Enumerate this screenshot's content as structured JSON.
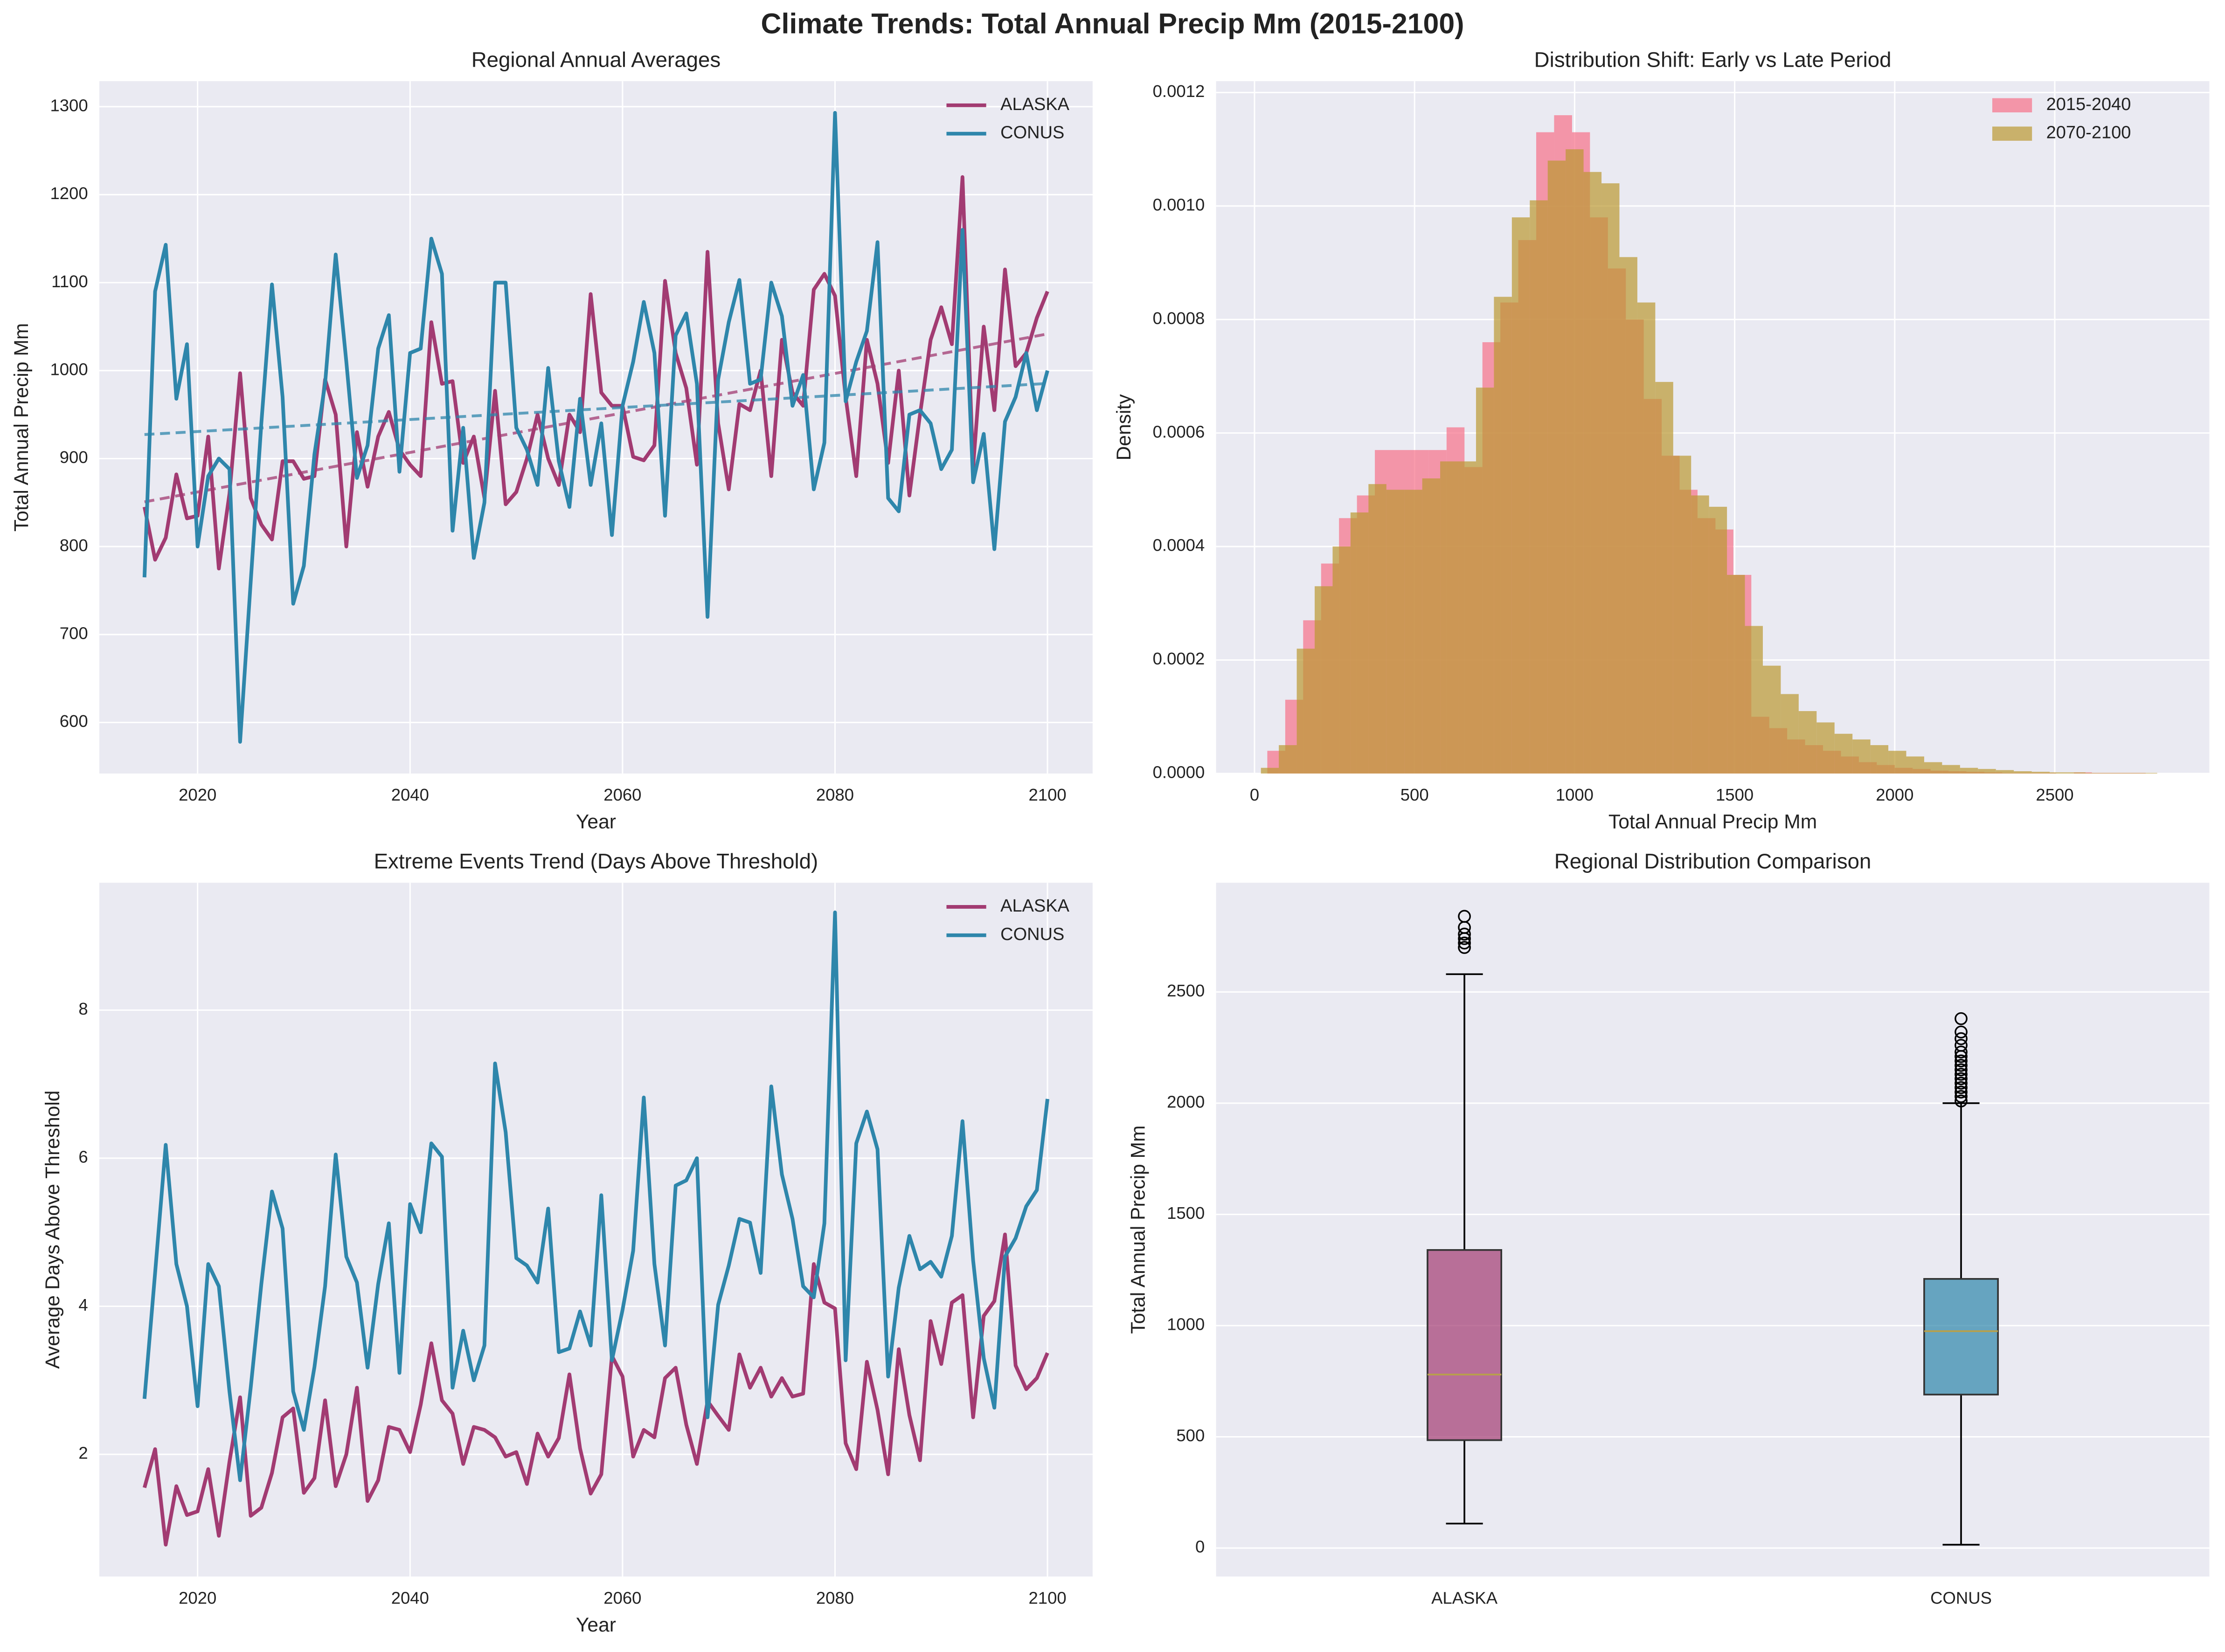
{
  "title": "Climate Trends: Total Annual Precip Mm (2015-2100)",
  "chart_data": [
    {
      "type": "line",
      "title": "Regional Annual Averages",
      "xlabel": "Year",
      "ylabel": "Total Annual Precip Mm",
      "x": [
        2015,
        2016,
        2017,
        2018,
        2019,
        2020,
        2021,
        2022,
        2023,
        2024,
        2025,
        2026,
        2027,
        2028,
        2029,
        2030,
        2031,
        2032,
        2033,
        2034,
        2035,
        2036,
        2037,
        2038,
        2039,
        2040,
        2041,
        2042,
        2043,
        2044,
        2045,
        2046,
        2047,
        2048,
        2049,
        2050,
        2051,
        2052,
        2053,
        2054,
        2055,
        2056,
        2057,
        2058,
        2059,
        2060,
        2061,
        2062,
        2063,
        2064,
        2065,
        2066,
        2067,
        2068,
        2069,
        2070,
        2071,
        2072,
        2073,
        2074,
        2075,
        2076,
        2077,
        2078,
        2079,
        2080,
        2081,
        2082,
        2083,
        2084,
        2085,
        2086,
        2087,
        2088,
        2089,
        2090,
        2091,
        2092,
        2093,
        2094,
        2095,
        2096,
        2097,
        2098,
        2099,
        2100
      ],
      "series": [
        {
          "name": "ALASKA",
          "color": "#a23b72",
          "values": [
            845,
            785,
            810,
            882,
            832,
            835,
            925,
            775,
            860,
            997,
            855,
            825,
            808,
            897,
            897,
            877,
            880,
            990,
            950,
            800,
            930,
            868,
            925,
            953,
            910,
            893,
            880,
            1055,
            985,
            988,
            895,
            925,
            855,
            977,
            848,
            862,
            900,
            950,
            900,
            870,
            950,
            930,
            1087,
            975,
            960,
            960,
            902,
            898,
            915,
            1102,
            1020,
            980,
            893,
            1135,
            940,
            865,
            962,
            955,
            1000,
            880,
            1035,
            975,
            960,
            1092,
            1110,
            1085,
            970,
            880,
            1035,
            985,
            895,
            1000,
            858,
            950,
            1035,
            1072,
            1030,
            1220,
            890,
            1050,
            955,
            1115,
            1005,
            1020,
            1060,
            1090
          ]
        },
        {
          "name": "CONUS",
          "color": "#2e86ab",
          "values": [
            765,
            1090,
            1143,
            968,
            1030,
            800,
            880,
            900,
            888,
            578,
            760,
            940,
            1098,
            970,
            735,
            778,
            905,
            985,
            1132,
            1010,
            878,
            915,
            1025,
            1063,
            885,
            1020,
            1025,
            1150,
            1110,
            818,
            935,
            787,
            850,
            1100,
            1100,
            935,
            910,
            870,
            1003,
            897,
            845,
            968,
            870,
            940,
            813,
            960,
            1010,
            1078,
            1020,
            835,
            1040,
            1065,
            985,
            720,
            990,
            1055,
            1103,
            985,
            990,
            1100,
            1062,
            960,
            995,
            865,
            918,
            1293,
            965,
            1010,
            1045,
            1146,
            855,
            840,
            950,
            955,
            940,
            888,
            910,
            1160,
            873,
            928,
            797,
            942,
            970,
            1020,
            955,
            1000
          ]
        }
      ],
      "xlim": [
        2010.75,
        2104.25
      ],
      "xticks": [
        2020,
        2040,
        2060,
        2080,
        2100
      ],
      "ylim": [
        542,
        1329
      ],
      "yticks": [
        600,
        700,
        800,
        900,
        1000,
        1100,
        1200,
        1300
      ],
      "grid": true,
      "trendline": true,
      "legend": "upper right"
    },
    {
      "type": "histogram",
      "title": "Distribution Shift: Early vs Late Period",
      "xlabel": "Total Annual Precip Mm",
      "ylabel": "Density",
      "series": [
        {
          "name": "2015-2040",
          "color": "#f77189",
          "bins": [
            40,
            96,
            152,
            208,
            264,
            320,
            376,
            432,
            488,
            544,
            600,
            656,
            712,
            768,
            824,
            880,
            936,
            992,
            1048,
            1104,
            1160,
            1216,
            1272,
            1328,
            1384,
            1440,
            1496,
            1552,
            1608,
            1664,
            1720,
            1776,
            1832,
            1888,
            1944,
            2000,
            2056,
            2112,
            2168,
            2224,
            2280,
            2336,
            2392,
            2448,
            2504,
            2560,
            2616,
            2672,
            2728,
            2784,
            2840
          ],
          "values": [
            4e-05,
            0.00013,
            0.00027,
            0.00037,
            0.00045,
            0.00049,
            0.00057,
            0.00057,
            0.00057,
            0.00057,
            0.00061,
            0.00054,
            0.00076,
            0.00083,
            0.00094,
            0.00113,
            0.00116,
            0.00113,
            0.00098,
            0.00089,
            0.0008,
            0.00066,
            0.00056,
            0.0005,
            0.00045,
            0.00043,
            0.00035,
            0.0001,
            8e-05,
            6e-05,
            5e-05,
            4e-05,
            3e-05,
            2e-05,
            1.5e-05,
            1e-05,
            8e-06,
            5e-06,
            4e-06,
            3e-06,
            2e-06,
            1e-06,
            1e-06,
            1e-06,
            0,
            2e-06,
            1e-06,
            1e-06,
            1e-06,
            0
          ]
        },
        {
          "name": "2070-2100",
          "color": "#bb9832",
          "bins": [
            20,
            76,
            132,
            188,
            244,
            300,
            356,
            412,
            468,
            524,
            580,
            636,
            692,
            748,
            804,
            860,
            916,
            972,
            1028,
            1084,
            1140,
            1196,
            1252,
            1308,
            1364,
            1420,
            1476,
            1532,
            1588,
            1644,
            1700,
            1756,
            1812,
            1868,
            1924,
            1980,
            2036,
            2092,
            2148,
            2204,
            2260,
            2316,
            2372,
            2428,
            2484,
            2540,
            2596,
            2652,
            2708,
            2764,
            2820
          ],
          "values": [
            1e-05,
            5e-05,
            0.00022,
            0.00033,
            0.0004,
            0.00046,
            0.00051,
            0.0005,
            0.0005,
            0.00052,
            0.00055,
            0.00055,
            0.00068,
            0.00084,
            0.00098,
            0.00101,
            0.00108,
            0.0011,
            0.00106,
            0.00104,
            0.00091,
            0.00083,
            0.00069,
            0.00056,
            0.00049,
            0.00047,
            0.00035,
            0.00026,
            0.00019,
            0.00014,
            0.00011,
            9e-05,
            7e-05,
            6e-05,
            5e-05,
            4e-05,
            3e-05,
            2e-05,
            1.5e-05,
            1e-05,
            8e-06,
            6e-06,
            4e-06,
            3e-06,
            2e-06,
            2e-06,
            1e-06,
            1e-06,
            1e-06,
            1e-06
          ]
        }
      ],
      "xlim": [
        -120,
        2983
      ],
      "xticks": [
        0,
        500,
        1000,
        1500,
        2000,
        2500
      ],
      "ylim": [
        0,
        0.00122
      ],
      "yticks": [
        {
          "value": 0,
          "label": "0.0000"
        },
        {
          "value": 0.0002,
          "label": "0.0002"
        },
        {
          "value": 0.0004,
          "label": "0.0004"
        },
        {
          "value": 0.0006,
          "label": "0.0006"
        },
        {
          "value": 0.0008,
          "label": "0.0008"
        },
        {
          "value": 0.001,
          "label": "0.0010"
        },
        {
          "value": 0.0012,
          "label": "0.0012"
        }
      ],
      "grid": true,
      "legend": "upper right"
    },
    {
      "type": "line",
      "title": "Extreme Events Trend (Days Above Threshold)",
      "xlabel": "Year",
      "ylabel": "Average Days Above Threshold",
      "x": [
        2015,
        2016,
        2017,
        2018,
        2019,
        2020,
        2021,
        2022,
        2023,
        2024,
        2025,
        2026,
        2027,
        2028,
        2029,
        2030,
        2031,
        2032,
        2033,
        2034,
        2035,
        2036,
        2037,
        2038,
        2039,
        2040,
        2041,
        2042,
        2043,
        2044,
        2045,
        2046,
        2047,
        2048,
        2049,
        2050,
        2051,
        2052,
        2053,
        2054,
        2055,
        2056,
        2057,
        2058,
        2059,
        2060,
        2061,
        2062,
        2063,
        2064,
        2065,
        2066,
        2067,
        2068,
        2069,
        2070,
        2071,
        2072,
        2073,
        2074,
        2075,
        2076,
        2077,
        2078,
        2079,
        2080,
        2081,
        2082,
        2083,
        2084,
        2085,
        2086,
        2087,
        2088,
        2089,
        2090,
        2091,
        2092,
        2093,
        2094,
        2095,
        2096,
        2097,
        2098,
        2099,
        2100
      ],
      "series": [
        {
          "name": "ALASKA",
          "color": "#a23b72",
          "values": [
            1.55,
            2.07,
            0.78,
            1.57,
            1.18,
            1.23,
            1.8,
            0.9,
            1.9,
            2.77,
            1.17,
            1.28,
            1.75,
            2.5,
            2.62,
            1.48,
            1.68,
            2.73,
            1.57,
            2.0,
            2.9,
            1.37,
            1.65,
            2.37,
            2.33,
            2.03,
            2.67,
            3.5,
            2.73,
            2.55,
            1.87,
            2.37,
            2.33,
            2.23,
            1.97,
            2.03,
            1.6,
            2.28,
            1.97,
            2.22,
            3.08,
            2.08,
            1.47,
            1.73,
            3.33,
            3.05,
            1.97,
            2.33,
            2.23,
            3.03,
            3.17,
            2.4,
            1.87,
            2.72,
            2.52,
            2.33,
            3.35,
            2.9,
            3.17,
            2.78,
            3.03,
            2.78,
            2.82,
            4.57,
            4.05,
            3.97,
            2.15,
            1.8,
            3.25,
            2.6,
            1.73,
            3.42,
            2.53,
            1.92,
            3.8,
            3.22,
            4.05,
            4.15,
            2.5,
            3.87,
            4.07,
            4.97,
            3.2,
            2.88,
            3.03,
            3.37
          ]
        },
        {
          "name": "CONUS",
          "color": "#2e86ab",
          "values": [
            2.75,
            4.45,
            6.18,
            4.57,
            4.0,
            2.65,
            4.57,
            4.27,
            2.85,
            1.65,
            2.9,
            4.3,
            5.55,
            5.05,
            2.85,
            2.33,
            3.18,
            4.27,
            6.05,
            4.67,
            4.32,
            3.17,
            4.3,
            5.12,
            3.1,
            5.38,
            5.0,
            6.2,
            6.02,
            2.9,
            3.67,
            3.0,
            3.47,
            7.28,
            6.35,
            4.65,
            4.55,
            4.32,
            5.32,
            3.38,
            3.43,
            3.93,
            3.47,
            5.5,
            3.27,
            3.95,
            4.75,
            6.82,
            4.57,
            3.47,
            5.63,
            5.7,
            6.0,
            2.5,
            4.02,
            4.55,
            5.18,
            5.13,
            4.45,
            6.97,
            5.78,
            5.18,
            4.27,
            4.12,
            5.12,
            9.32,
            3.27,
            6.2,
            6.63,
            6.12,
            3.05,
            4.25,
            4.95,
            4.5,
            4.6,
            4.4,
            4.95,
            6.5,
            4.62,
            3.3,
            2.63,
            4.67,
            4.92,
            5.35,
            5.57,
            6.8
          ]
        }
      ],
      "xlim": [
        2010.75,
        2104.25
      ],
      "xticks": [
        2020,
        2040,
        2060,
        2080,
        2100
      ],
      "ylim": [
        0.35,
        9.72
      ],
      "yticks": [
        2,
        4,
        6,
        8
      ],
      "grid": true,
      "legend": "upper right"
    },
    {
      "type": "box",
      "title": "Regional Distribution Comparison",
      "ylabel": "Total Annual Precip Mm",
      "categories": [
        "ALASKA",
        "CONUS"
      ],
      "boxes": [
        {
          "color": "#a23b72",
          "whislo": 110,
          "q1": 485,
          "med": 780,
          "q3": 1340,
          "whishi": 2580,
          "fliers": [
            2700,
            2720,
            2740,
            2760,
            2790,
            2840
          ]
        },
        {
          "color": "#2e86ab",
          "whislo": 15,
          "q1": 690,
          "med": 975,
          "q3": 1210,
          "whishi": 2000,
          "fliers": [
            2010,
            2030,
            2050,
            2070,
            2090,
            2110,
            2130,
            2150,
            2170,
            2190,
            2210,
            2230,
            2260,
            2290,
            2320,
            2380
          ]
        }
      ],
      "median_color": "#b8a04a",
      "ylim": [
        -128,
        2991
      ],
      "yticks": [
        0,
        500,
        1000,
        1500,
        2000,
        2500
      ],
      "grid": true
    }
  ]
}
